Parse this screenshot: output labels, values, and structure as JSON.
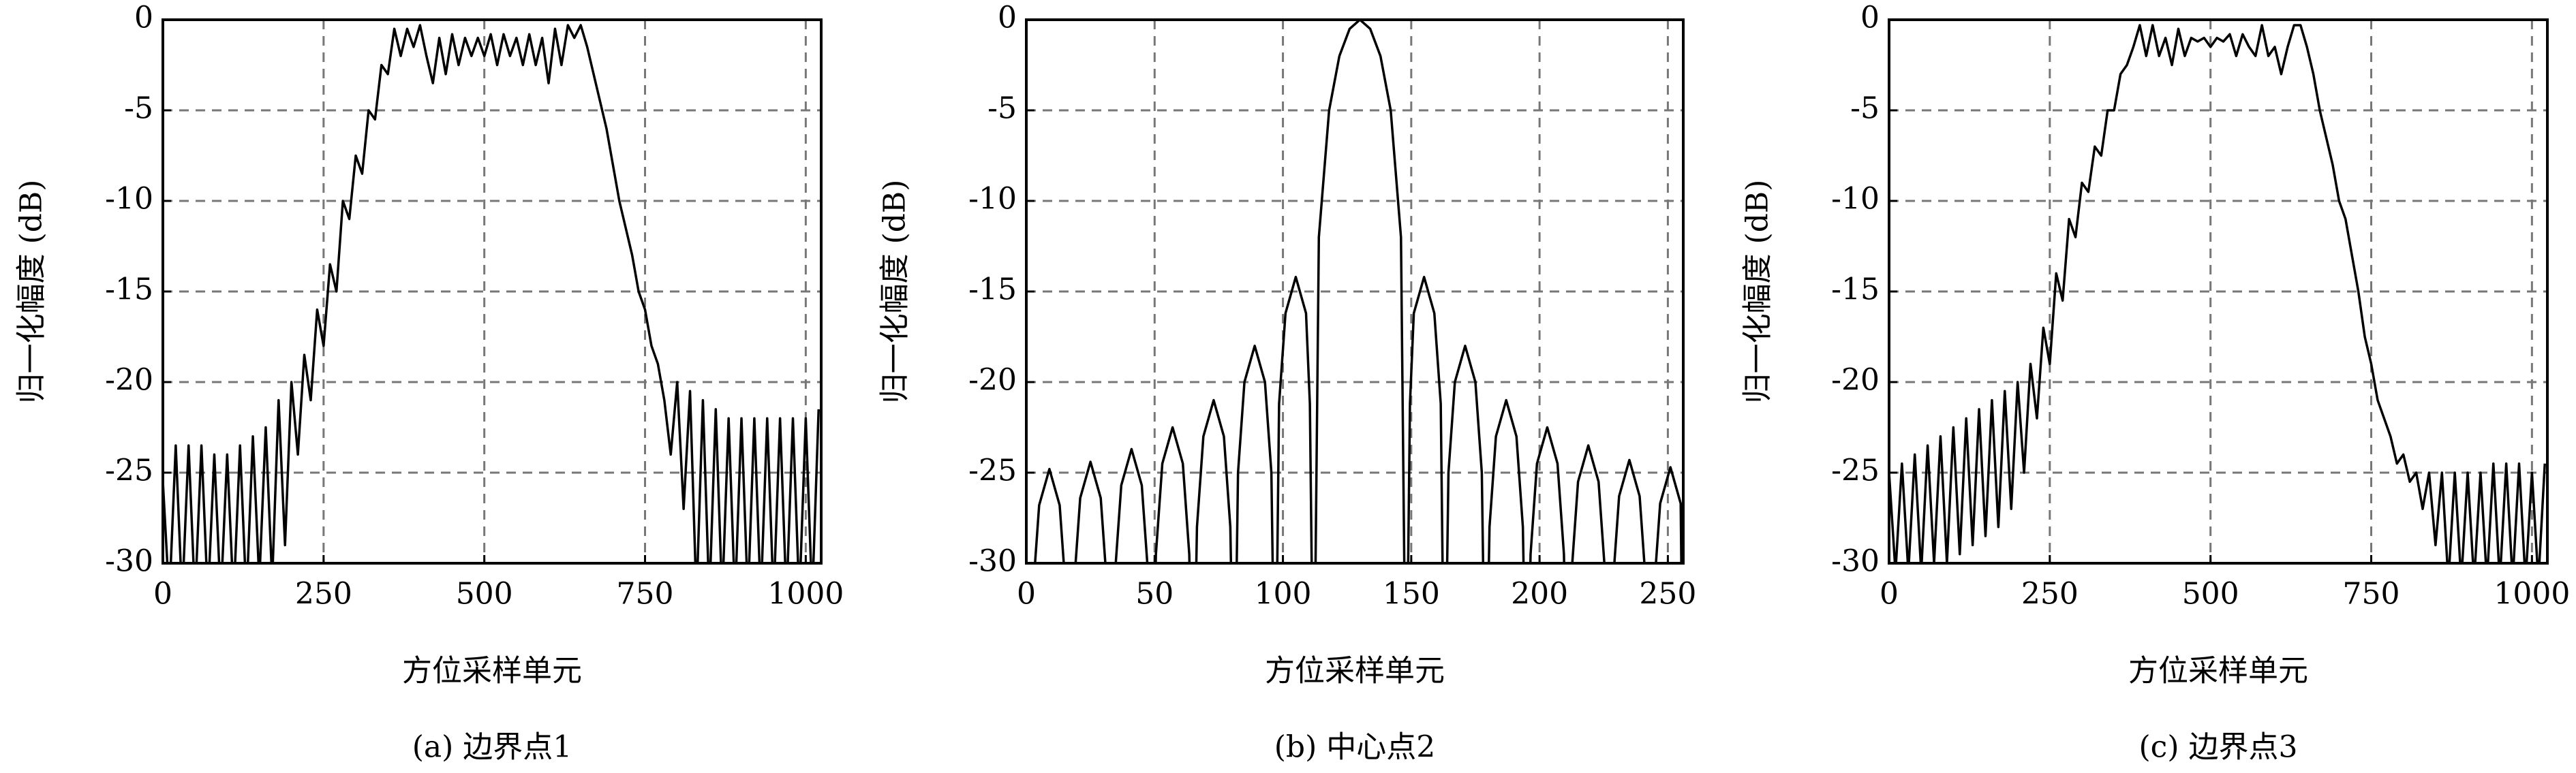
{
  "chart_data": [
    {
      "type": "line",
      "caption": "(a) 边界点1",
      "xlabel": "方位采样单元",
      "ylabel": "归一化幅度 (dB)",
      "xlim": [
        0,
        1024
      ],
      "ylim": [
        -30,
        0
      ],
      "xticks": [
        0,
        250,
        500,
        750,
        1000
      ],
      "yticks": [
        -30,
        -25,
        -20,
        -15,
        -10,
        -5,
        0
      ],
      "grid": true,
      "x": [
        0,
        10,
        20,
        30,
        40,
        50,
        60,
        70,
        80,
        90,
        100,
        110,
        120,
        130,
        140,
        150,
        160,
        170,
        180,
        190,
        200,
        210,
        220,
        230,
        240,
        250,
        260,
        270,
        280,
        290,
        300,
        310,
        320,
        330,
        340,
        350,
        360,
        370,
        380,
        390,
        400,
        410,
        420,
        430,
        440,
        450,
        460,
        470,
        480,
        490,
        500,
        510,
        520,
        530,
        540,
        550,
        560,
        570,
        580,
        590,
        600,
        610,
        620,
        630,
        640,
        650,
        660,
        670,
        680,
        690,
        700,
        710,
        720,
        730,
        740,
        750,
        760,
        770,
        780,
        790,
        800,
        810,
        820,
        830,
        840,
        850,
        860,
        870,
        880,
        890,
        900,
        910,
        920,
        930,
        940,
        950,
        960,
        970,
        980,
        990,
        1000,
        1010,
        1020
      ],
      "series": [
        {
          "color": "#000000",
          "values": [
            -25.5,
            -32,
            -23.5,
            -32,
            -23.5,
            -32,
            -23.5,
            -32,
            -24,
            -32,
            -24,
            -32,
            -23.5,
            -32,
            -23,
            -31,
            -22.5,
            -31,
            -21,
            -29,
            -20,
            -24,
            -18.5,
            -21,
            -16,
            -18,
            -13.5,
            -15,
            -10,
            -11,
            -7.5,
            -8.5,
            -5,
            -5.5,
            -2.5,
            -3,
            -0.5,
            -2,
            -0.5,
            -1.5,
            -0.3,
            -2,
            -3.5,
            -1,
            -3,
            -0.8,
            -2.5,
            -1,
            -2,
            -1,
            -2,
            -0.8,
            -2.5,
            -0.8,
            -2,
            -1,
            -2.5,
            -0.8,
            -2.5,
            -1,
            -3.5,
            -0.5,
            -2.5,
            -0.3,
            -1,
            -0.3,
            -1.5,
            -3,
            -4.5,
            -6,
            -8,
            -10,
            -11.5,
            -13,
            -15,
            -16,
            -18,
            -19,
            -21,
            -24,
            -20,
            -27,
            -20.5,
            -32,
            -21,
            -32,
            -21.5,
            -32,
            -22,
            -32,
            -22,
            -32,
            -22,
            -32,
            -22,
            -32,
            -22,
            -32,
            -22,
            -32,
            -22,
            -32,
            -21.5
          ]
        }
      ]
    },
    {
      "type": "line",
      "caption": "(b) 中心点2",
      "xlabel": "方位采样单元",
      "ylabel": "归一化幅度 (dB)",
      "xlim": [
        0,
        256
      ],
      "ylim": [
        -30,
        0
      ],
      "xticks": [
        0,
        50,
        100,
        150,
        200,
        250
      ],
      "yticks": [
        -30,
        -25,
        -20,
        -15,
        -10,
        -5,
        0
      ],
      "grid": true,
      "x": [
        1,
        2.5,
        5,
        9,
        13,
        15.5,
        17,
        18.5,
        21,
        25,
        29,
        31.5,
        33,
        34.5,
        37,
        41,
        45,
        47.5,
        49,
        50.5,
        53,
        57,
        61,
        63.5,
        65,
        66.5,
        69,
        73,
        77,
        79.5,
        81,
        82.5,
        85,
        89,
        93,
        95.5,
        97,
        98.5,
        101,
        105,
        109,
        110.5,
        112,
        114,
        118,
        122,
        126,
        130,
        134,
        138,
        142,
        146,
        148,
        149.5,
        151,
        155,
        159,
        161.5,
        163,
        164.5,
        167,
        171,
        175,
        177.5,
        179,
        180.5,
        183,
        187,
        191,
        193.5,
        195,
        196.5,
        199,
        203,
        207,
        209.5,
        211,
        212.5,
        215,
        219,
        223,
        225.5,
        227,
        228.5,
        231,
        235,
        239,
        241.5,
        243,
        244.5,
        247,
        251,
        255,
        256
      ],
      "series": [
        {
          "color": "#000000",
          "values": [
            -40,
            -31.8,
            -26.8,
            -24.8,
            -26.8,
            -31.8,
            -40,
            -31.4,
            -26.4,
            -24.4,
            -26.4,
            -31.4,
            -40,
            -30.7,
            -25.7,
            -23.7,
            -25.7,
            -30.7,
            -40,
            -29.5,
            -24.5,
            -22.5,
            -24.5,
            -29.5,
            -40,
            -28,
            -23,
            -21,
            -23,
            -28,
            -40,
            -25,
            -20,
            -18,
            -20,
            -25,
            -40,
            -21.2,
            -16.2,
            -14.2,
            -16.2,
            -21.2,
            -40,
            -12,
            -5,
            -2,
            -0.5,
            0,
            -0.5,
            -2,
            -5,
            -12,
            -40,
            -21.2,
            -16.2,
            -14.2,
            -16.2,
            -21.2,
            -40,
            -25,
            -20,
            -18,
            -20,
            -25,
            -40,
            -28,
            -23,
            -21,
            -23,
            -28,
            -40,
            -29.5,
            -24.5,
            -22.5,
            -24.5,
            -29.5,
            -40,
            -30.5,
            -25.5,
            -23.5,
            -25.5,
            -30.5,
            -40,
            -31.3,
            -26.3,
            -24.3,
            -26.3,
            -31.3,
            -40,
            -31.7,
            -26.7,
            -24.7,
            -26.7,
            -40
          ]
        }
      ]
    },
    {
      "type": "line",
      "caption": "(c) 边界点3",
      "xlabel": "方位采样单元",
      "ylabel": "归一化幅度 (dB)",
      "xlim": [
        0,
        1024
      ],
      "ylim": [
        -30,
        0
      ],
      "xticks": [
        0,
        250,
        500,
        750,
        1000
      ],
      "yticks": [
        -30,
        -25,
        -20,
        -15,
        -10,
        -5,
        0
      ],
      "grid": true,
      "x": [
        0,
        10,
        20,
        30,
        40,
        50,
        60,
        70,
        80,
        90,
        100,
        110,
        120,
        130,
        140,
        150,
        160,
        170,
        180,
        190,
        200,
        210,
        220,
        230,
        240,
        250,
        260,
        270,
        280,
        290,
        300,
        310,
        320,
        330,
        340,
        350,
        360,
        370,
        380,
        390,
        400,
        410,
        420,
        430,
        440,
        450,
        460,
        470,
        480,
        490,
        500,
        510,
        520,
        530,
        540,
        550,
        560,
        570,
        580,
        590,
        600,
        610,
        620,
        630,
        640,
        650,
        660,
        670,
        680,
        690,
        700,
        710,
        720,
        730,
        740,
        750,
        760,
        770,
        780,
        790,
        800,
        810,
        820,
        830,
        840,
        850,
        860,
        870,
        880,
        890,
        900,
        910,
        920,
        930,
        940,
        950,
        960,
        970,
        980,
        990,
        1000,
        1010,
        1020
      ],
      "series": [
        {
          "color": "#000000",
          "values": [
            -25,
            -30.5,
            -24.5,
            -30.5,
            -24,
            -30.5,
            -23.5,
            -30,
            -23,
            -30,
            -22.5,
            -29.5,
            -22,
            -29,
            -21.5,
            -28.5,
            -21,
            -28,
            -20.5,
            -27,
            -20,
            -25,
            -19,
            -22,
            -17,
            -19,
            -14,
            -15.5,
            -11,
            -12,
            -9,
            -9.5,
            -7,
            -7.5,
            -5,
            -5,
            -3,
            -2.5,
            -1.5,
            -0.3,
            -2,
            -0.3,
            -2,
            -1,
            -2.5,
            -0.5,
            -2,
            -1,
            -1.2,
            -1,
            -1.5,
            -1,
            -1.2,
            -0.8,
            -2,
            -0.8,
            -1.5,
            -2,
            -0.3,
            -2,
            -1.5,
            -3,
            -1.5,
            -0.3,
            -0.3,
            -1.5,
            -3,
            -5,
            -6.5,
            -8,
            -10,
            -11,
            -13,
            -15,
            -17.5,
            -19,
            -21,
            -22,
            -23,
            -24.5,
            -24,
            -25.5,
            -25,
            -27,
            -25,
            -29,
            -25,
            -31,
            -25,
            -31,
            -25,
            -31,
            -25,
            -31,
            -24.5,
            -31,
            -24.5,
            -31,
            -24.5,
            -31,
            -25,
            -31,
            -24.5
          ]
        }
      ]
    }
  ]
}
